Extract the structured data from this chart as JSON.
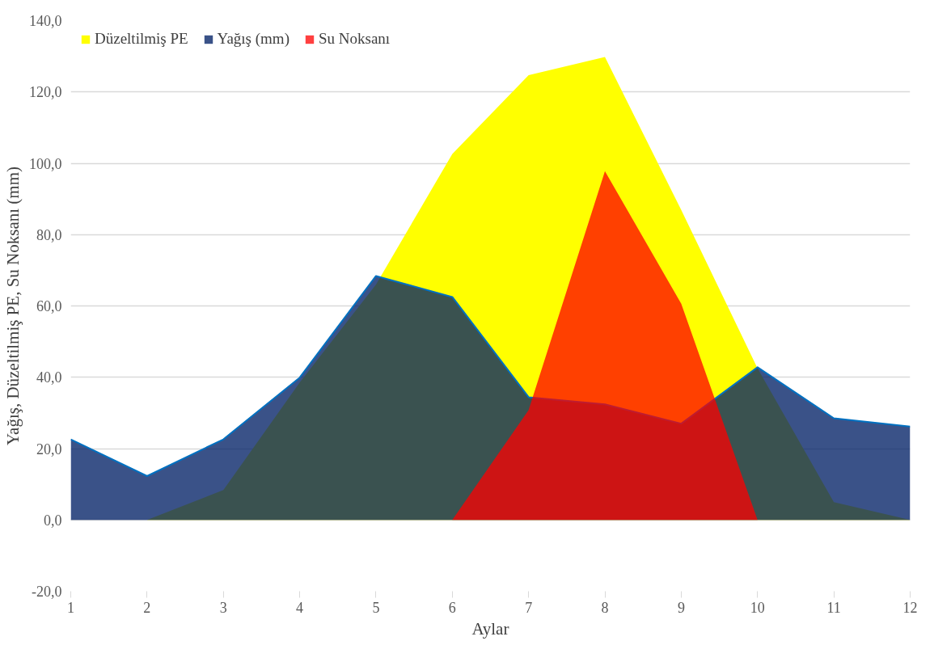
{
  "chart_data": {
    "type": "area",
    "xlabel": "Aylar",
    "ylabel": "Yağış, Düzeltilmiş PE, Su Noksanı (mm)",
    "x": [
      1,
      2,
      3,
      4,
      5,
      6,
      7,
      8,
      9,
      10,
      11,
      12
    ],
    "series": [
      {
        "name": "Düzeltilmiş PE",
        "color": "#ffff00",
        "values": [
          0,
          0,
          8.4,
          38.5,
          66,
          102.6,
          124.7,
          129.8,
          86.9,
          42.5,
          5,
          0
        ]
      },
      {
        "name": "Yağış (mm)",
        "color": "#032167",
        "values": [
          22.6,
          12.3,
          22.6,
          39.9,
          68.4,
          62.5,
          34.4,
          32.4,
          27.0,
          42.8,
          28.5,
          26.2
        ]
      },
      {
        "name": "Su Noksanı",
        "color": "#ff0000",
        "values": [
          0,
          0,
          0,
          0,
          0,
          0,
          30.8,
          97.8,
          60.6,
          0,
          0,
          0
        ]
      }
    ],
    "xlim": [
      1,
      12
    ],
    "xticks": [
      1,
      2,
      3,
      4,
      5,
      6,
      7,
      8,
      9,
      10,
      11,
      12
    ],
    "ylim": [
      -20,
      140
    ],
    "yticks": [
      {
        "value": -20,
        "label": "-20,0"
      },
      {
        "value": 0,
        "label": "0,0"
      },
      {
        "value": 20,
        "label": "20,0"
      },
      {
        "value": 40,
        "label": "40,0"
      },
      {
        "value": 60,
        "label": "60,0"
      },
      {
        "value": 80,
        "label": "80,0"
      },
      {
        "value": 100,
        "label": "100,0"
      },
      {
        "value": 120,
        "label": "120,0"
      },
      {
        "value": 140,
        "label": "140,0"
      }
    ],
    "grid": "y",
    "legend": "top left"
  }
}
